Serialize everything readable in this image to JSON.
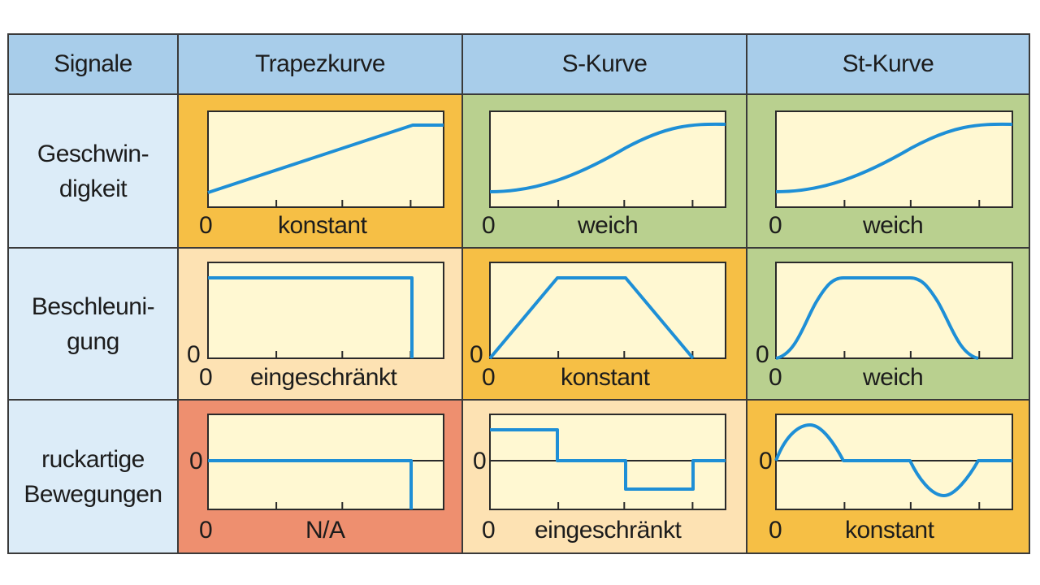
{
  "header": {
    "col0": "Signale",
    "col1": "Trapezkurve",
    "col2": "S-Kurve",
    "col3": "St-Kurve"
  },
  "rows": [
    {
      "label": "Geschwin-\ndigkeit"
    },
    {
      "label": "Beschleuni-\ngung"
    },
    {
      "label": "ruckartige\nBewegungen"
    }
  ],
  "cells": [
    [
      {
        "note": "konstant",
        "zero_x": "0",
        "zero_y": "",
        "bg": "#f6bf45"
      },
      {
        "note": "weich",
        "zero_x": "0",
        "zero_y": "",
        "bg": "#b9d08f"
      },
      {
        "note": "weich",
        "zero_x": "0",
        "zero_y": "",
        "bg": "#b9d08f"
      }
    ],
    [
      {
        "note": "eingeschränkt",
        "zero_x": "0",
        "zero_y": "0",
        "bg": "#fde2b3"
      },
      {
        "note": "konstant",
        "zero_x": "0",
        "zero_y": "0",
        "bg": "#f6bf45"
      },
      {
        "note": "weich",
        "zero_x": "0",
        "zero_y": "0",
        "bg": "#b9d08f"
      }
    ],
    [
      {
        "note": "N/A",
        "zero_x": "0",
        "zero_y": "0",
        "bg": "#ee8f6f"
      },
      {
        "note": "eingeschränkt",
        "zero_x": "0",
        "zero_y": "0",
        "bg": "#fde2b3"
      },
      {
        "note": "konstant",
        "zero_x": "0",
        "zero_y": "0",
        "bg": "#f6bf45"
      }
    ]
  ],
  "colors": {
    "header_bg": "#a8cdea",
    "rowlabel_bg": "#dcecf8",
    "plot_bg": "#fff8d2",
    "curve": "#1e8fd6",
    "frame": "#2a2a2a"
  }
}
